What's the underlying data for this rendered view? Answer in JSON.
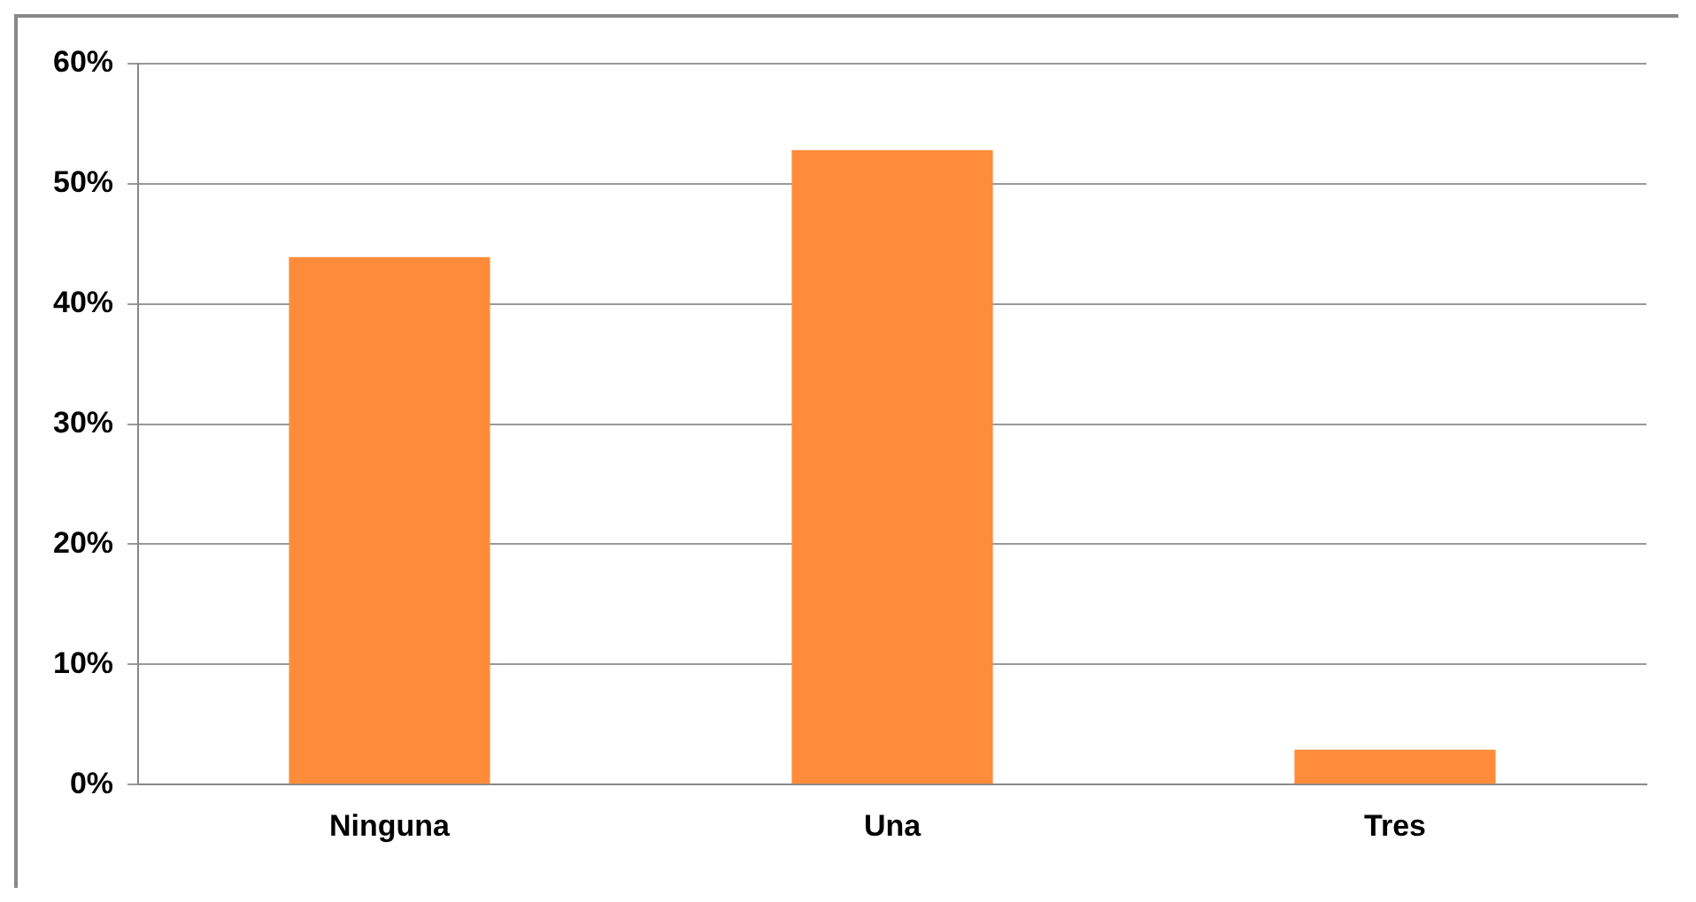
{
  "chart_data": {
    "type": "bar",
    "categories": [
      "Ninguna",
      "Una",
      "Tres"
    ],
    "values": [
      43.9,
      52.8,
      2.9
    ],
    "color": "#ff8c3a",
    "ylim": [
      0,
      60
    ],
    "yticks": [
      {
        "value": 0,
        "label": "0%"
      },
      {
        "value": 10,
        "label": "10%"
      },
      {
        "value": 20,
        "label": "20%"
      },
      {
        "value": 30,
        "label": "30%"
      },
      {
        "value": 40,
        "label": "40%"
      },
      {
        "value": 50,
        "label": "50%"
      },
      {
        "value": 60,
        "label": "60%"
      }
    ],
    "grid": "y",
    "legend": false
  }
}
